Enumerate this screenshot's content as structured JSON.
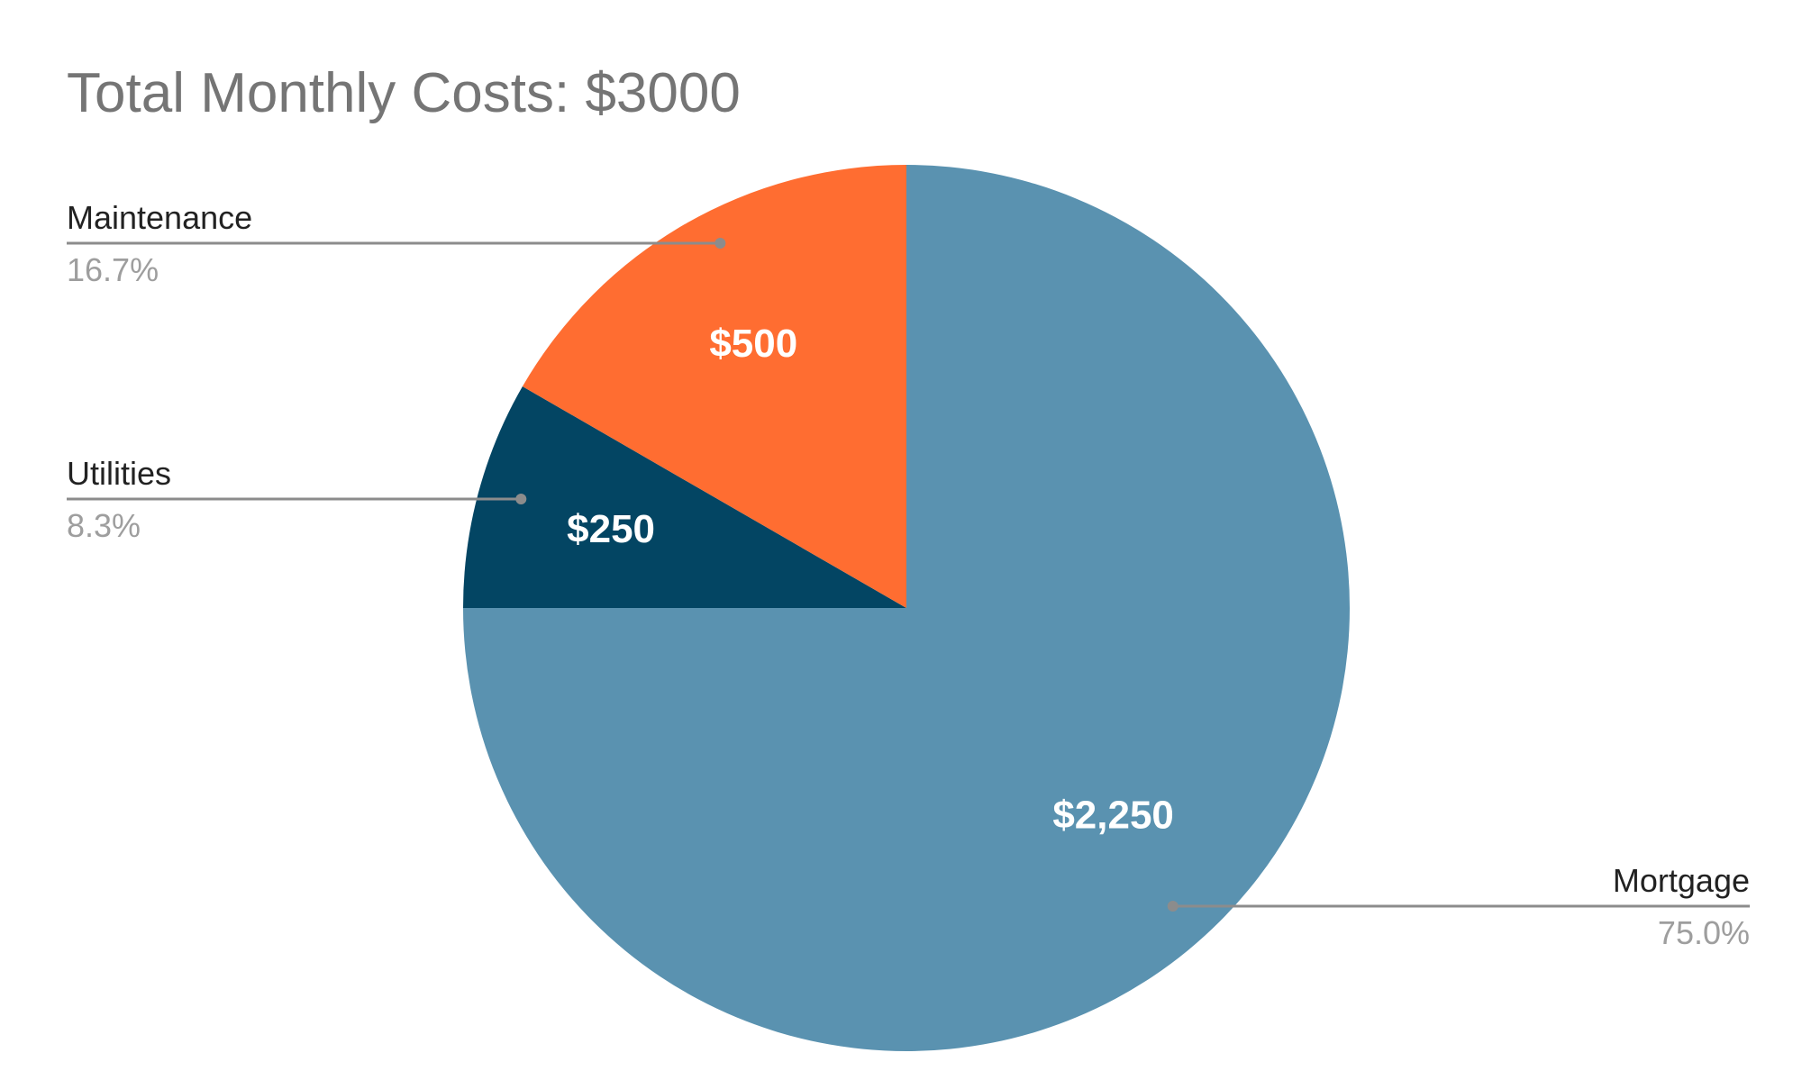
{
  "chart_data": {
    "type": "pie",
    "title": "Total Monthly Costs: $3000",
    "slices": [
      {
        "label": "Mortgage",
        "value": 2250,
        "value_label": "$2,250",
        "percent_label": "75.0%",
        "color": "#5a92b0"
      },
      {
        "label": "Utilities",
        "value": 250,
        "value_label": "$250",
        "percent_label": "8.3%",
        "color": "#034563"
      },
      {
        "label": "Maintenance",
        "value": 500,
        "value_label": "$500",
        "percent_label": "16.7%",
        "color": "#ff6d31"
      }
    ],
    "start_angle": "12 o'clock",
    "direction": "clockwise",
    "legend": "none",
    "label_style": "leader-lines"
  }
}
